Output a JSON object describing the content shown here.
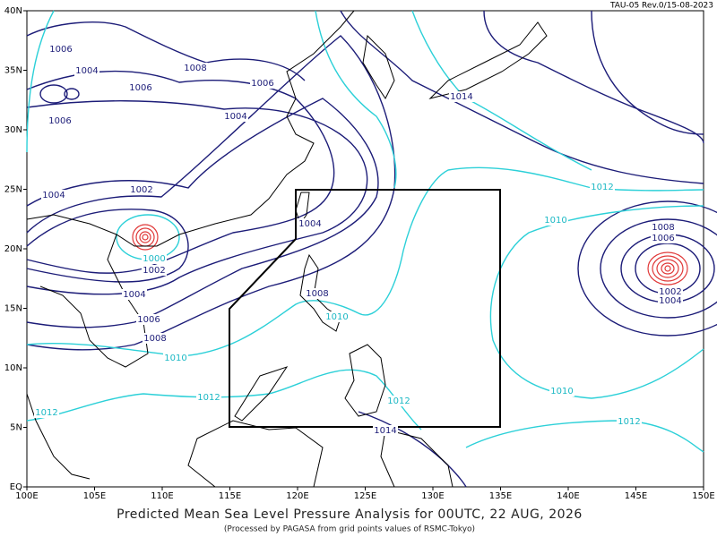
{
  "header": {
    "revision": "TAU-05 Rev.0/15-08-2023"
  },
  "map": {
    "lat_labels": [
      "40N",
      "35N",
      "30N",
      "25N",
      "20N",
      "15N",
      "10N",
      "5N",
      "EQ"
    ],
    "lon_labels": [
      "100E",
      "105E",
      "110E",
      "115E",
      "120E",
      "125E",
      "130E",
      "135E",
      "140E",
      "145E",
      "150E"
    ],
    "isobar_labels": [
      "1006",
      "1004",
      "1008",
      "1006",
      "1006",
      "1004",
      "1006",
      "1002",
      "1004",
      "1000",
      "1002",
      "1004",
      "1006",
      "1008",
      "1010",
      "1012",
      "1012",
      "1004",
      "1008",
      "1010",
      "1012",
      "1014",
      "1014",
      "1012",
      "1010",
      "1008",
      "1006",
      "1002",
      "1004",
      "1010",
      "1012"
    ]
  },
  "footer": {
    "title": "Predicted Mean Sea Level Pressure Analysis for 00UTC, 22 AUG, 2026",
    "subtitle": "(Processed by PAGASA from grid points values of RSMC-Tokyo)"
  }
}
